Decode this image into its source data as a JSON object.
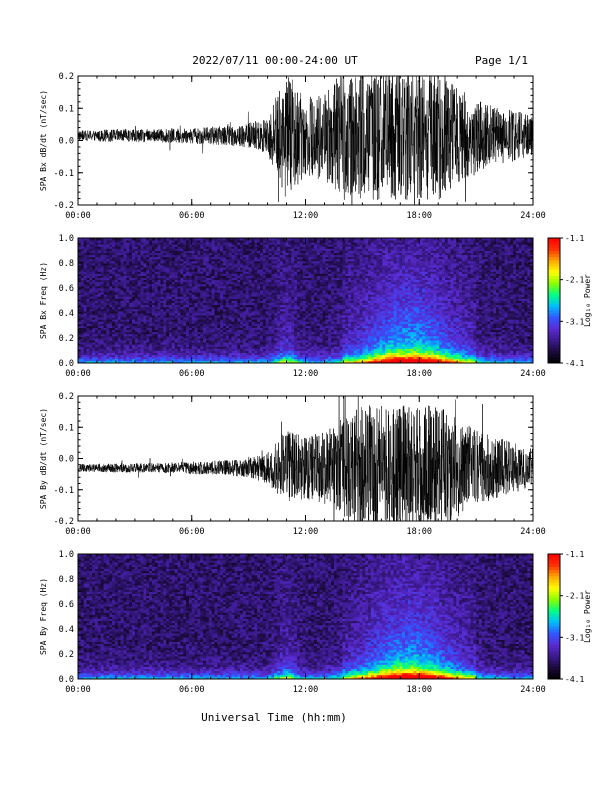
{
  "header": {
    "title": "2022/07/11  00:00-24:00 UT",
    "page": "Page 1/1"
  },
  "xlabel": "Universal Time (hh:mm)",
  "colors": {
    "trace": "#000000",
    "axes": "#000000",
    "background": "#ffffff",
    "colormap": [
      "#000000",
      "#1a0a3a",
      "#3a1a8a",
      "#5a2ad0",
      "#3355ff",
      "#00bbff",
      "#00ff88",
      "#88ff00",
      "#ffff00",
      "#ffaa00",
      "#ff3300",
      "#ff0000"
    ]
  },
  "chart_data": [
    {
      "type": "line",
      "ylabel": "SPA Bx dB/dt (nT/sec)",
      "xticks": [
        "00:00",
        "06:00",
        "12:00",
        "18:00",
        "24:00"
      ],
      "yticks": [
        "-0.2",
        "-0.1",
        "0.0",
        "0.1",
        "0.2"
      ],
      "xlim": [
        0,
        24
      ],
      "ylim": [
        -0.2,
        0.2
      ],
      "envelope": {
        "hours": [
          0,
          2,
          4,
          6,
          8,
          9,
          10,
          11,
          12,
          13,
          14,
          15,
          16,
          17,
          18,
          19,
          20,
          21,
          22,
          23,
          24
        ],
        "amplitude": [
          0.015,
          0.02,
          0.02,
          0.025,
          0.03,
          0.04,
          0.06,
          0.2,
          0.12,
          0.14,
          0.2,
          0.2,
          0.2,
          0.2,
          0.2,
          0.2,
          0.15,
          0.12,
          0.09,
          0.08,
          0.06
        ],
        "offset": 0.015
      }
    },
    {
      "type": "heatmap",
      "ylabel": "SPA Bx Freq (Hz)",
      "xticks": [
        "00:00",
        "06:00",
        "12:00",
        "18:00",
        "24:00"
      ],
      "yticks": [
        "0.0",
        "0.2",
        "0.4",
        "0.6",
        "0.8",
        "1.0"
      ],
      "xlim": [
        0,
        24
      ],
      "ylim": [
        0,
        1
      ],
      "colorbar": {
        "label": "Log₁₀ Power",
        "ticks": [
          "-1.1",
          "-2.1",
          "-3.1",
          "-4.1"
        ],
        "range": [
          -4.1,
          -1.1
        ]
      }
    },
    {
      "type": "line",
      "ylabel": "SPA By dB/dt (nT/sec)",
      "xticks": [
        "00:00",
        "06:00",
        "12:00",
        "18:00",
        "24:00"
      ],
      "yticks": [
        "-0.2",
        "-0.1",
        "0.0",
        "0.1",
        "0.2"
      ],
      "xlim": [
        0,
        24
      ],
      "ylim": [
        -0.2,
        0.2
      ],
      "envelope": {
        "hours": [
          0,
          2,
          4,
          6,
          8,
          9,
          10,
          11,
          12,
          13,
          14,
          15,
          16,
          17,
          18,
          19,
          20,
          21,
          22,
          23,
          24
        ],
        "amplitude": [
          0.012,
          0.015,
          0.015,
          0.02,
          0.025,
          0.03,
          0.05,
          0.12,
          0.1,
          0.12,
          0.16,
          0.2,
          0.2,
          0.2,
          0.2,
          0.2,
          0.16,
          0.12,
          0.1,
          0.08,
          0.06
        ],
        "offset": -0.03
      }
    },
    {
      "type": "heatmap",
      "ylabel": "SPA By Freq (Hz)",
      "xticks": [
        "00:00",
        "06:00",
        "12:00",
        "18:00",
        "24:00"
      ],
      "yticks": [
        "0.0",
        "0.2",
        "0.4",
        "0.6",
        "0.8",
        "1.0"
      ],
      "xlim": [
        0,
        24
      ],
      "ylim": [
        0,
        1
      ],
      "colorbar": {
        "label": "Log₁₀ Power",
        "ticks": [
          "-1.1",
          "-2.1",
          "-3.1",
          "-4.1"
        ],
        "range": [
          -4.1,
          -1.1
        ]
      }
    }
  ]
}
